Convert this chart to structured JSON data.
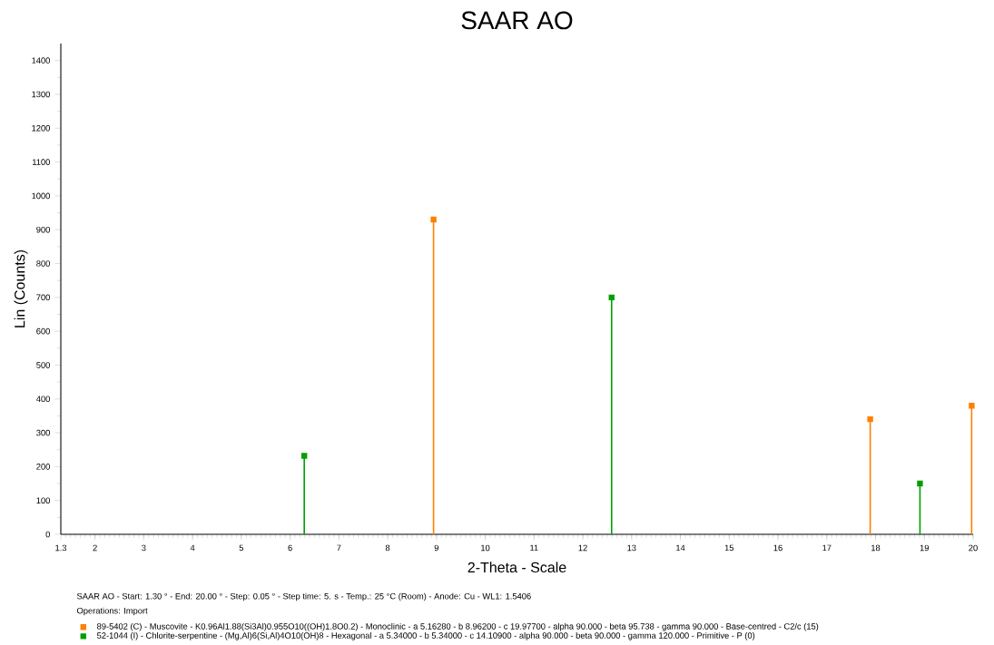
{
  "chart_data": {
    "type": "lollipop",
    "title": "SAAR AO",
    "xlabel": "2-Theta - Scale",
    "ylabel": "Lin (Counts)",
    "xlim": [
      1.3,
      20
    ],
    "ylim": [
      0,
      1450
    ],
    "xticks": [
      1.3,
      2,
      3,
      4,
      5,
      6,
      7,
      8,
      9,
      10,
      11,
      12,
      13,
      14,
      15,
      16,
      17,
      18,
      19,
      20
    ],
    "yticks": [
      0,
      100,
      200,
      300,
      400,
      500,
      600,
      700,
      800,
      900,
      1000,
      1100,
      1200,
      1300,
      1400
    ],
    "legend": "bottom",
    "marker": "square",
    "annotations": [
      "SAAR AO - Start: 1.30 ° - End: 20.00 ° - Step: 0.05 ° - Step time: 5. s - Temp.: 25 °C (Room) - Anode: Cu - WL1: 1.5406",
      "Operations: Import"
    ],
    "series": [
      {
        "name": "89-5402 (C) - Muscovite - K0.96Al1.88(Si3Al)0.955O10((OH)1.8O0.2) - Monoclinic - a 5.16280 - b 8.96200 - c 19.97700 - alpha 90.000 - beta 95.738 - gamma 90.000 - Base-centred - C2/c (15)",
        "color": "#ff8000",
        "x": [
          8.94,
          17.89,
          19.97
        ],
        "values": [
          930,
          340,
          380
        ]
      },
      {
        "name": "52-1044 (I) - Chlorite-serpentine - (Mg,Al)6(Si,Al)4O10(OH)8 - Hexagonal - a 5.34000 - b 5.34000 - c 14.10900 - alpha 90.000 - beta 90.000 - gamma 120.000 - Primitive - P (0)",
        "color": "#00a000",
        "x": [
          6.29,
          12.59,
          18.91
        ],
        "values": [
          232,
          700,
          150
        ]
      }
    ]
  }
}
